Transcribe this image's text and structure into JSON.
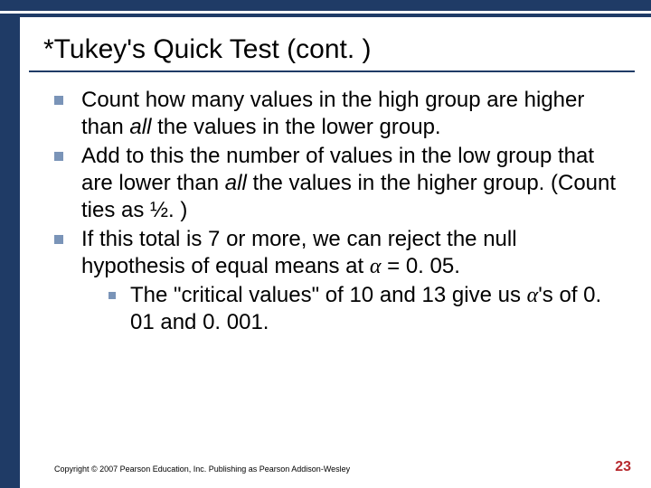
{
  "colors": {
    "stripe": "#1f3b66",
    "bullet": "#7a94b8",
    "pagenum": "#b7292e",
    "text": "#000000",
    "background": "#ffffff"
  },
  "title": "*Tukey's Quick Test (cont. )",
  "bullets": {
    "b1a": "Count how many values in the high group are higher than ",
    "b1_all": "all",
    "b1b": " the values in the lower group.",
    "b2a": "Add to this the number of values in the low group that are lower than ",
    "b2_all": "all ",
    "b2b": " the values in the higher group. (Count ties as ½. )",
    "b3a": "If this total is 7 or more, we can reject the null hypothesis of equal means at ",
    "b3_alpha": "α",
    "b3b": " = 0. 05.",
    "sub_a": "The \"critical values\" of 10 and 13 give us ",
    "sub_alpha": "α",
    "sub_b": "'s of 0. 01 and 0. 001."
  },
  "footer": "Copyright © 2007 Pearson Education, Inc. Publishing as Pearson Addison-Wesley",
  "page": "23"
}
